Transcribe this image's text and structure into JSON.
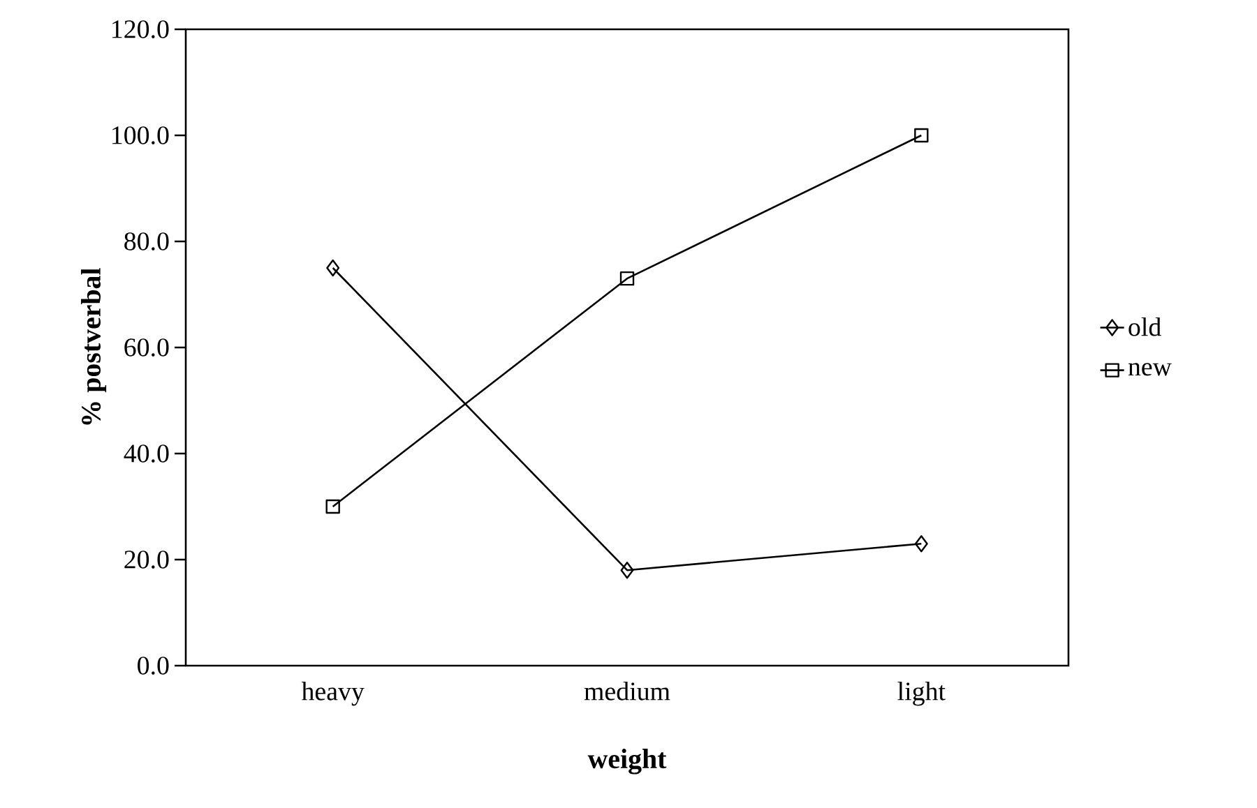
{
  "chart_data": {
    "type": "line",
    "xlabel": "weight",
    "ylabel": "% postverbal",
    "categories": [
      "heavy",
      "medium",
      "light"
    ],
    "series": [
      {
        "name": "old",
        "color": "#000000",
        "marker": "diamond",
        "values": [
          75,
          18,
          23
        ]
      },
      {
        "name": "new",
        "color": "#000000",
        "marker": "square",
        "values": [
          30,
          73,
          100
        ]
      }
    ],
    "ylim": [
      0,
      120
    ],
    "yticks": [
      {
        "value": 0,
        "label": "0.0"
      },
      {
        "value": 20,
        "label": "20.0"
      },
      {
        "value": 40,
        "label": "40.0"
      },
      {
        "value": 60,
        "label": "60.0"
      },
      {
        "value": 80,
        "label": "80.0"
      },
      {
        "value": 100,
        "label": "100.0"
      },
      {
        "value": 120,
        "label": "120.0"
      }
    ],
    "grid": false,
    "legend": "right",
    "line_style": "solid"
  }
}
